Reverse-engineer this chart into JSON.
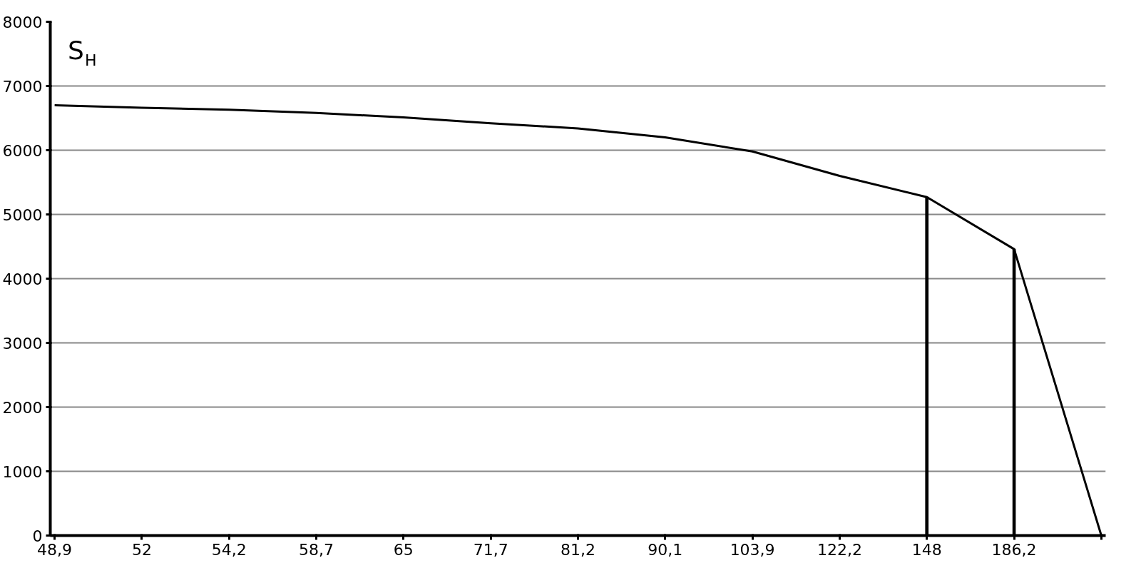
{
  "chart_data": {
    "type": "line",
    "ylabel": "S$_{H}$",
    "categories": [
      "48,9",
      "52",
      "54,2",
      "58,7",
      "65",
      "71,7",
      "81,2",
      "90,1",
      "103,9",
      "122,2",
      "148",
      "186,2",
      null
    ],
    "series": [
      {
        "color": "#000000",
        "values": [
          6700,
          6660,
          6630,
          6580,
          6510,
          6420,
          6340,
          6200,
          5980,
          5600,
          5270,
          4460,
          0
        ]
      },
      {
        "type": "bar",
        "color": "#000000",
        "values": [
          null,
          null,
          null,
          null,
          null,
          null,
          null,
          null,
          null,
          null,
          5270,
          4460,
          null
        ]
      }
    ],
    "ylim": [
      0,
      8000
    ],
    "yticks": [
      0,
      1000,
      2000,
      3000,
      4000,
      5000,
      6000,
      7000,
      8000
    ],
    "grid": "y"
  }
}
